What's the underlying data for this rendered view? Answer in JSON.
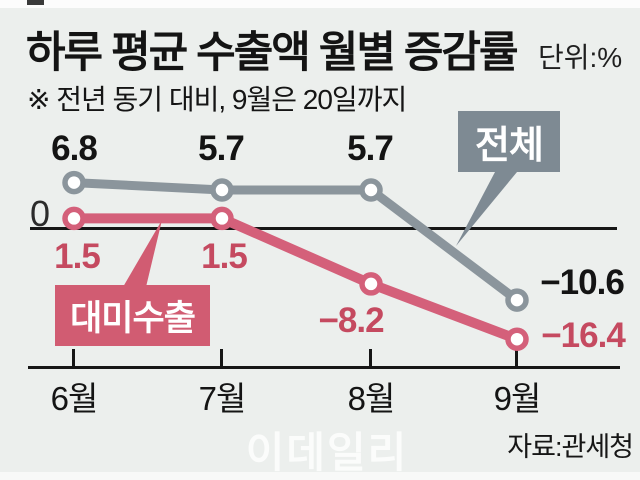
{
  "header": {
    "title": "하루 평균 수출액 월별 증감률",
    "unit": "단위:%",
    "note": "※ 전년 동기 대비, 9월은 20일까지"
  },
  "chart_data": {
    "type": "line",
    "categories": [
      "6월",
      "7월",
      "8월",
      "9월"
    ],
    "series": [
      {
        "name": "전체",
        "values": [
          6.8,
          5.7,
          5.7,
          -10.6
        ],
        "labels": [
          "6.8",
          "5.7",
          "5.7",
          "−10.6"
        ],
        "line_color": "#8b959c",
        "box_color": "#7e8a93",
        "label_color": "#141414"
      },
      {
        "name": "대미수출",
        "values": [
          1.5,
          1.5,
          -8.2,
          -16.4
        ],
        "labels": [
          "1.5",
          "1.5",
          "−8.2",
          "−16.4"
        ],
        "line_color": "#d4607a",
        "box_color": "#d15c72",
        "label_color": "#c54a60"
      }
    ],
    "zero_label": "0",
    "title": "하루 평균 수출액 월별 증감률",
    "xlabel": "",
    "ylabel": "단위:%",
    "ylim": [
      -18,
      8
    ],
    "grid": false,
    "legend_position": "callout-boxes",
    "marker_style": "open-circle",
    "background_color": "#ecefed"
  },
  "footer": {
    "source": "자료:관세청",
    "watermark": "이데일리"
  }
}
